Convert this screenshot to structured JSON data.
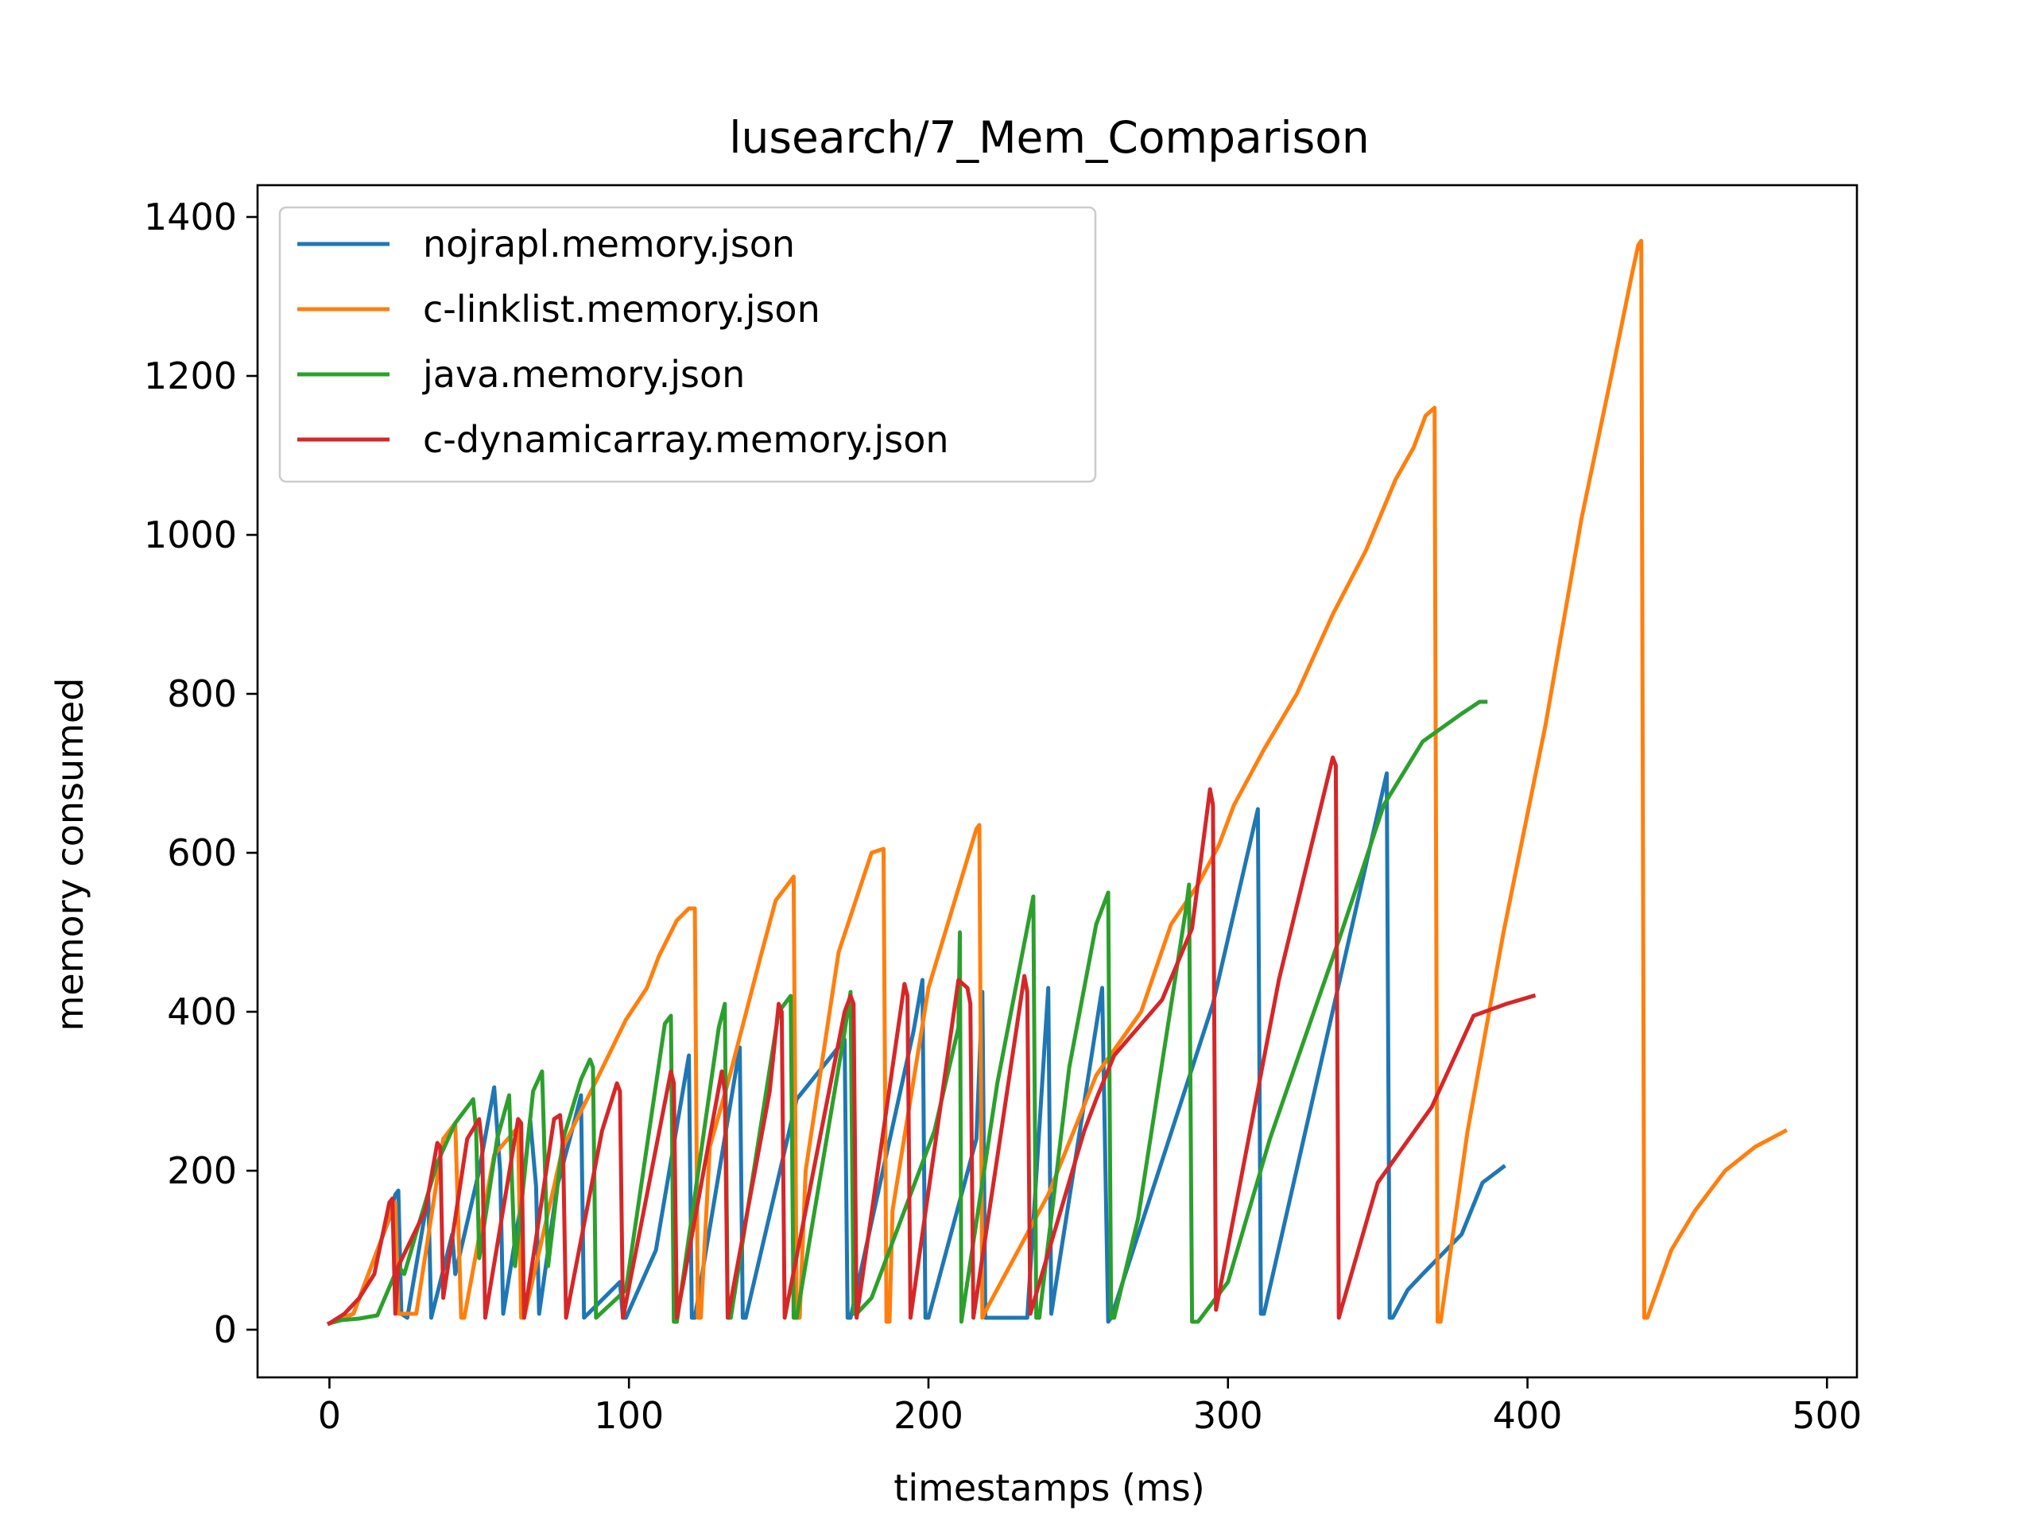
{
  "chart_data": {
    "type": "line",
    "title": "lusearch/7_Mem_Comparison",
    "xlabel": "timestamps (ms)",
    "ylabel": "memory consumed",
    "xlim": [
      -24,
      510
    ],
    "ylim": [
      -60,
      1440
    ],
    "x_ticks": [
      0,
      100,
      200,
      300,
      400,
      500
    ],
    "y_ticks": [
      0,
      200,
      400,
      600,
      800,
      1000,
      1200,
      1400
    ],
    "grid": false,
    "legend_position": "upper-left",
    "series": [
      {
        "name": "nojrapl.memory.json",
        "color": "#1f77b4",
        "x": [
          0,
          8,
          14,
          20,
          22,
          23,
          24,
          26,
          33,
          34,
          41,
          42,
          50,
          55,
          57,
          58,
          64,
          67,
          69,
          70,
          76,
          82,
          84,
          85,
          97,
          98,
          99,
          109,
          120,
          121,
          122,
          137,
          138,
          139,
          156,
          172,
          173,
          174,
          195,
          198,
          199,
          200,
          216,
          218,
          219,
          233,
          240,
          241,
          258,
          260,
          261,
          295,
          310,
          311,
          312,
          353,
          354,
          355,
          360,
          365,
          378,
          385,
          392
        ],
        "y": [
          8,
          20,
          80,
          140,
          170,
          175,
          20,
          15,
          170,
          15,
          120,
          70,
          200,
          305,
          200,
          20,
          160,
          265,
          180,
          20,
          180,
          265,
          295,
          15,
          60,
          15,
          15,
          100,
          345,
          15,
          15,
          355,
          15,
          15,
          290,
          365,
          15,
          15,
          375,
          440,
          15,
          15,
          240,
          425,
          15,
          15,
          430,
          20,
          430,
          10,
          15,
          410,
          655,
          20,
          20,
          700,
          15,
          15,
          50,
          70,
          120,
          185,
          205
        ]
      },
      {
        "name": "c-linklist.memory.json",
        "color": "#ff7f0e",
        "x": [
          0,
          8,
          14,
          19,
          21,
          22,
          23,
          29,
          38,
          42,
          44,
          45,
          55,
          63,
          64,
          65,
          78,
          88,
          99,
          106,
          110,
          116,
          120,
          122,
          123,
          124,
          127,
          133,
          144,
          149,
          152,
          155,
          156,
          157,
          159,
          170,
          181,
          185,
          186,
          187,
          188,
          200,
          216,
          217,
          218,
          220,
          230,
          240,
          256,
          271,
          281,
          290,
          297,
          302,
          312,
          323,
          335,
          346,
          356,
          362,
          366,
          369,
          370,
          371,
          380,
          392,
          406,
          418,
          428,
          435,
          437,
          438,
          439,
          440,
          448,
          456,
          466,
          476,
          486
        ],
        "y": [
          8,
          20,
          80,
          130,
          155,
          160,
          20,
          20,
          240,
          260,
          15,
          15,
          220,
          255,
          15,
          15,
          230,
          305,
          390,
          430,
          470,
          515,
          530,
          530,
          15,
          15,
          230,
          310,
          470,
          540,
          555,
          570,
          15,
          15,
          200,
          475,
          600,
          605,
          10,
          10,
          150,
          430,
          630,
          635,
          15,
          30,
          100,
          170,
          320,
          400,
          510,
          560,
          610,
          660,
          730,
          800,
          900,
          980,
          1070,
          1110,
          1150,
          1160,
          10,
          10,
          250,
          500,
          760,
          1020,
          1200,
          1330,
          1365,
          1370,
          15,
          15,
          100,
          150,
          200,
          230,
          250
        ]
      },
      {
        "name": "java.memory.json",
        "color": "#2ca02c",
        "x": [
          0,
          4,
          10,
          16,
          23,
          24,
          25,
          30,
          36,
          42,
          48,
          49,
          50,
          56,
          60,
          61,
          62,
          68,
          71,
          72,
          73,
          78,
          84,
          87,
          88,
          89,
          99,
          112,
          114,
          115,
          116,
          130,
          132,
          133,
          134,
          150,
          154,
          155,
          156,
          172,
          174,
          175,
          176,
          181,
          190,
          202,
          210,
          210.5,
          211,
          223,
          235,
          236,
          237,
          247,
          256,
          260,
          261,
          262,
          270,
          286,
          287,
          288,
          290,
          300,
          314,
          325,
          337,
          345,
          352,
          365,
          378,
          384,
          386
        ],
        "y": [
          8,
          12,
          14,
          18,
          80,
          75,
          70,
          135,
          210,
          260,
          290,
          250,
          90,
          240,
          295,
          180,
          80,
          300,
          325,
          200,
          80,
          240,
          315,
          340,
          330,
          15,
          50,
          385,
          395,
          10,
          10,
          380,
          410,
          15,
          15,
          400,
          420,
          15,
          15,
          375,
          425,
          20,
          20,
          40,
          130,
          250,
          380,
          500,
          10,
          310,
          545,
          15,
          15,
          330,
          510,
          550,
          15,
          15,
          140,
          530,
          560,
          10,
          10,
          60,
          240,
          360,
          490,
          580,
          660,
          740,
          775,
          790,
          790
        ]
      },
      {
        "name": "c-dynamicarray.memory.json",
        "color": "#d62728",
        "x": [
          0,
          5,
          10,
          15,
          20,
          21,
          22,
          23,
          32,
          36,
          37,
          38,
          46,
          50,
          51,
          52,
          63,
          64,
          65,
          75,
          77,
          78,
          79,
          91,
          96,
          97,
          98,
          114,
          115,
          116,
          131,
          132,
          133,
          147,
          150,
          151,
          152,
          172,
          174,
          175,
          176,
          192,
          193,
          194,
          210,
          213,
          214,
          215,
          232,
          233,
          234,
          252,
          256,
          262,
          278,
          288,
          294,
          295,
          296,
          317,
          335,
          336,
          337,
          350,
          368,
          382,
          393,
          402
        ],
        "y": [
          8,
          20,
          40,
          70,
          160,
          165,
          20,
          80,
          150,
          235,
          230,
          40,
          240,
          265,
          230,
          15,
          265,
          260,
          15,
          265,
          270,
          230,
          15,
          250,
          310,
          300,
          15,
          325,
          310,
          15,
          325,
          300,
          15,
          300,
          410,
          400,
          15,
          400,
          420,
          410,
          15,
          435,
          420,
          15,
          440,
          430,
          410,
          15,
          445,
          425,
          20,
          250,
          290,
          345,
          415,
          505,
          680,
          660,
          25,
          440,
          720,
          710,
          15,
          185,
          280,
          395,
          410,
          420
        ]
      }
    ]
  }
}
